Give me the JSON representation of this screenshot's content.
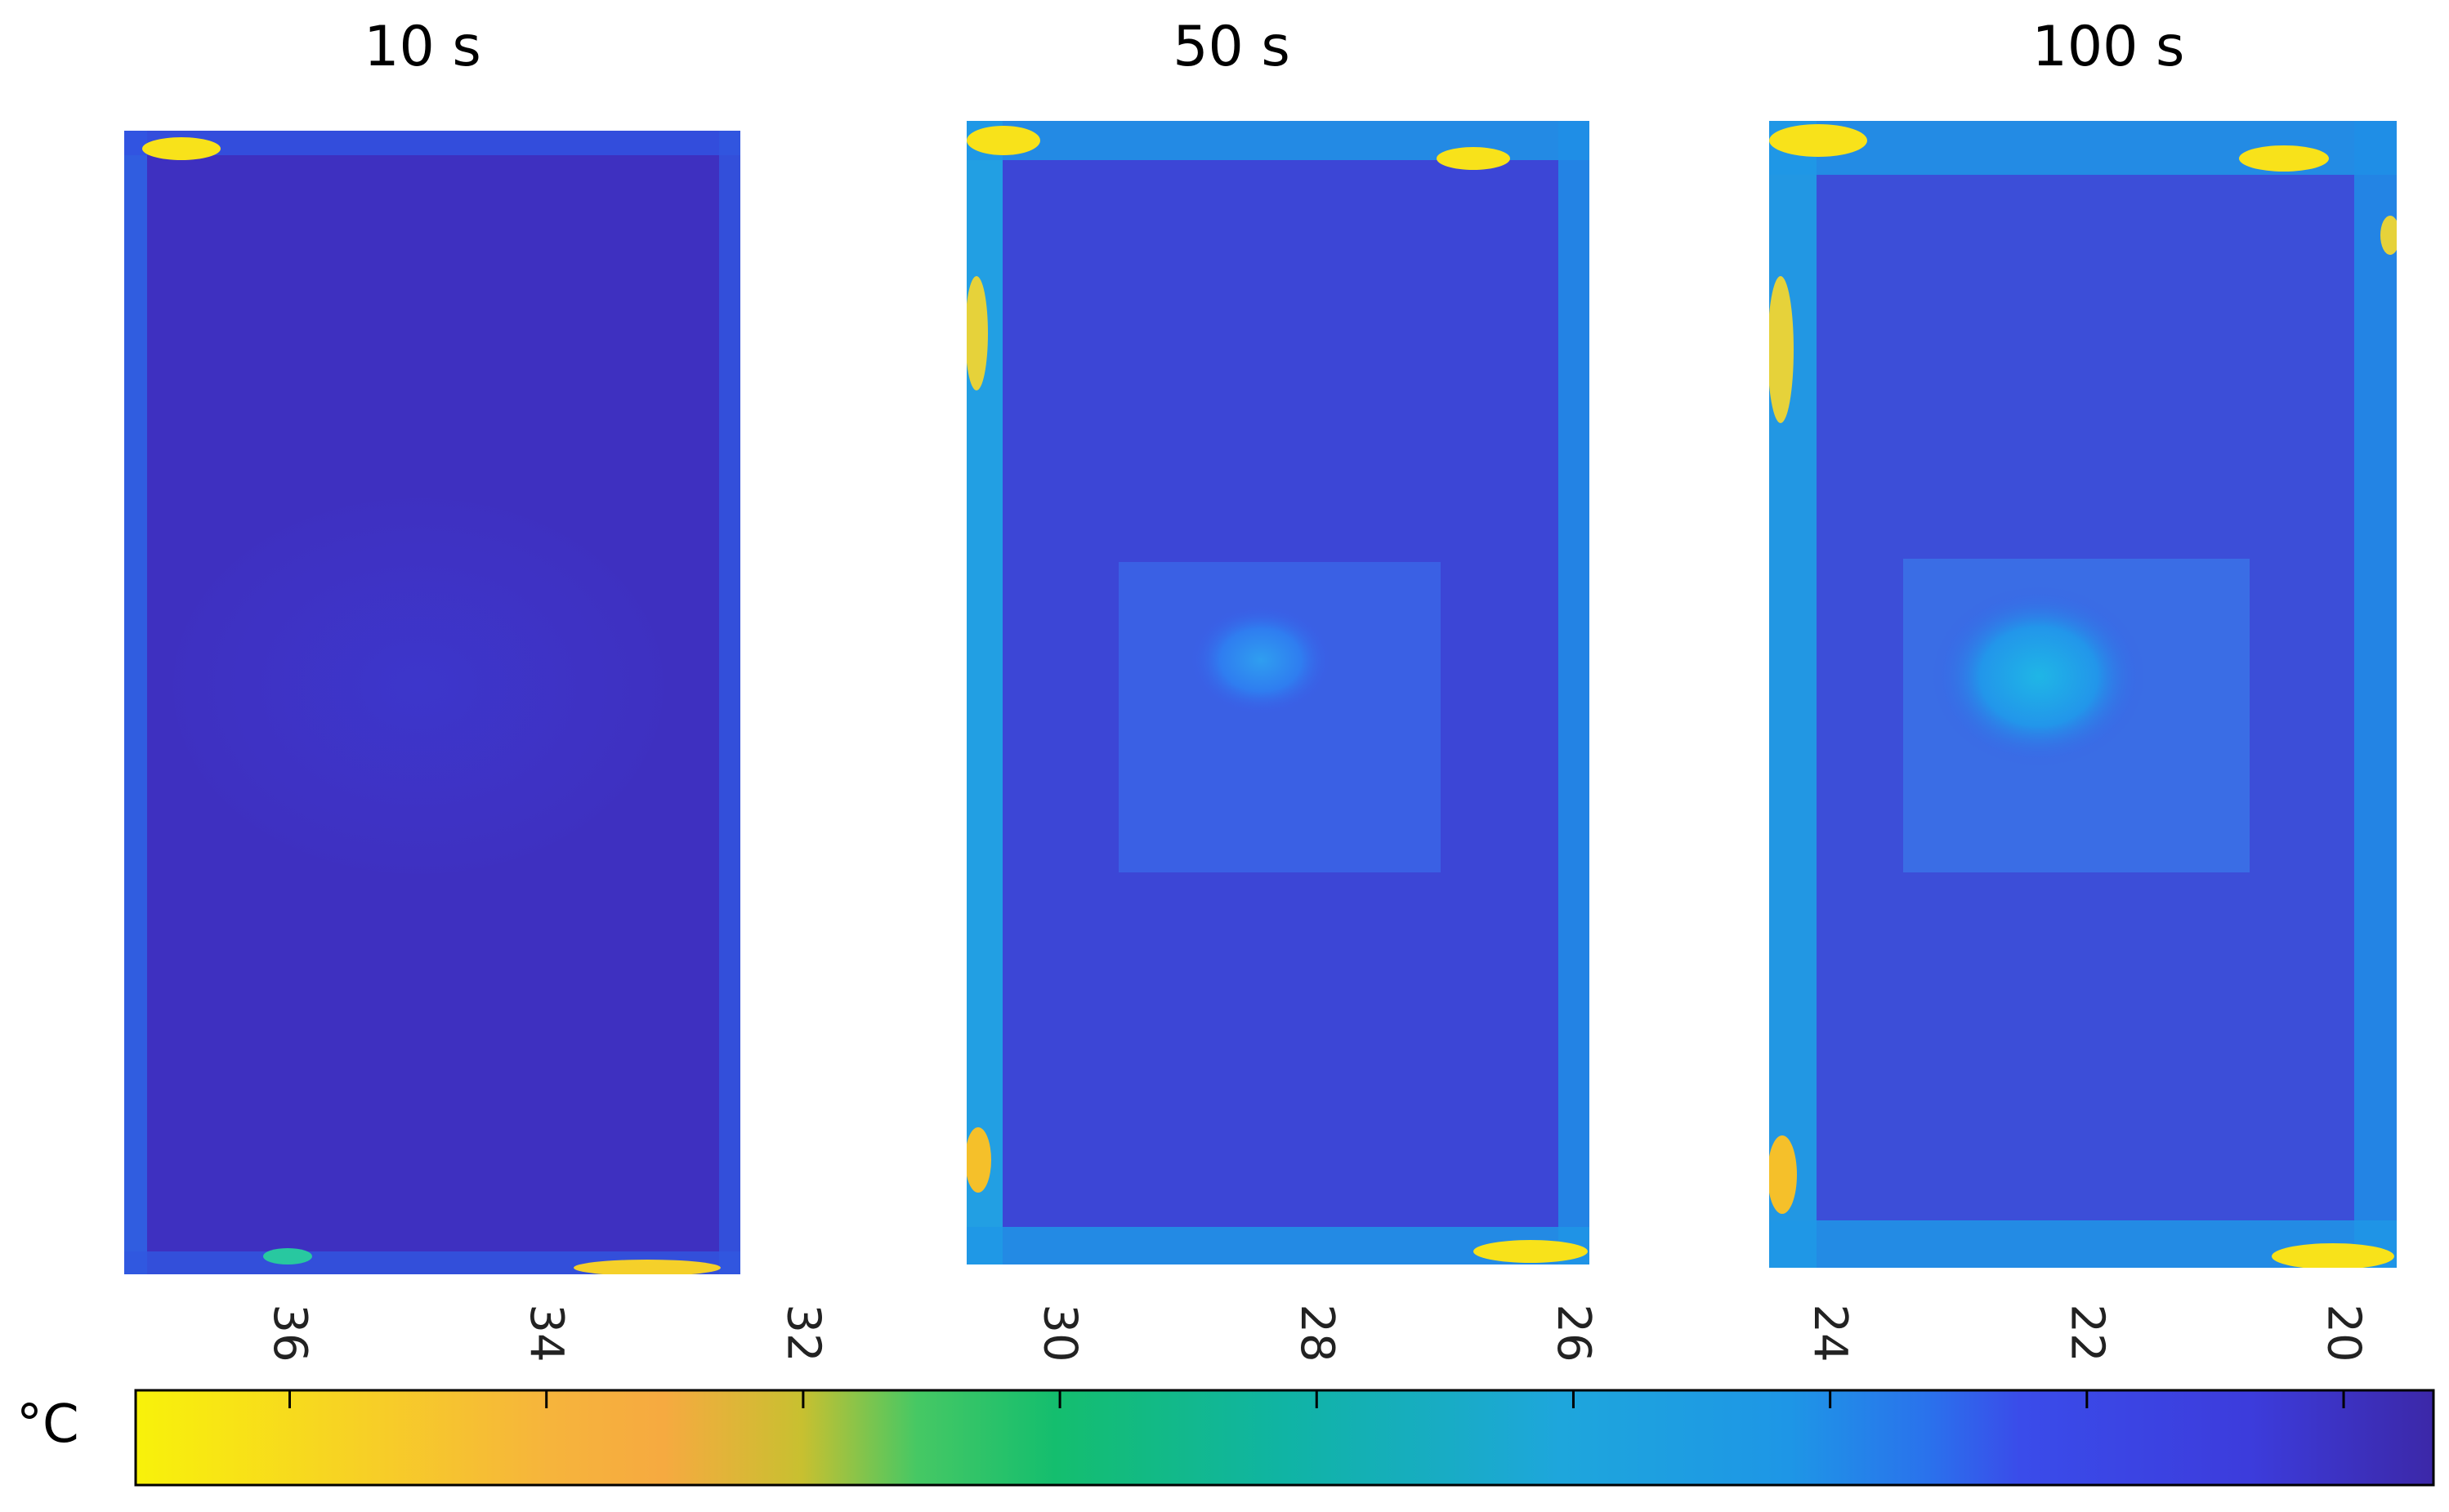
{
  "chart_data": {
    "type": "heatmap",
    "unit": "°C",
    "colorbar": {
      "min": 19.3,
      "max": 37.2,
      "ticks": [
        36,
        34,
        32,
        30,
        28,
        26,
        24,
        22,
        20
      ],
      "tick_labels": [
        "36",
        "34",
        "32",
        "30",
        "28",
        "26",
        "24",
        "22",
        "20"
      ],
      "orientation": "horizontal, reversed (high values on the left)",
      "colormap": "parula",
      "colors": {
        "hot": "#f8f20a",
        "warm": "#f6b43c",
        "mid": "#14be6e",
        "cool": "#1e96e6",
        "cold": "#3c3cdc",
        "coldest": "#3c28a8"
      }
    },
    "panels": [
      {
        "title": "10 s",
        "time_s": 10,
        "background_temp_c": 20.1,
        "center_temp_c": 20.4,
        "edge_temp_c": 22.5,
        "corner_hotspot_max_c": 36.5
      },
      {
        "title": "50 s",
        "time_s": 50,
        "background_temp_c": 21.0,
        "center_temp_c": 23.5,
        "edge_temp_c": 24.5,
        "corner_hotspot_max_c": 37.0
      },
      {
        "title": "100 s",
        "time_s": 100,
        "background_temp_c": 21.5,
        "center_temp_c": 24.5,
        "edge_temp_c": 25.0,
        "corner_hotspot_max_c": 37.0
      }
    ]
  }
}
